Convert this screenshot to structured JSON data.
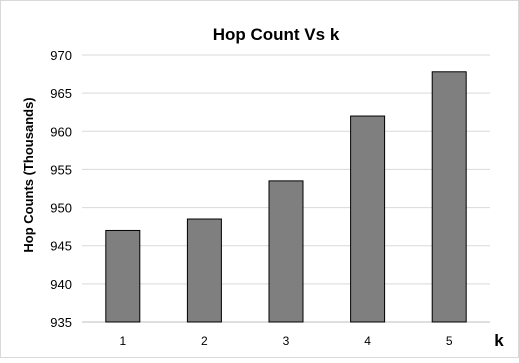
{
  "chart_data": {
    "type": "bar",
    "title": "Hop Count Vs k",
    "xlabel": "k",
    "ylabel": "Hop Counts (Thousands)",
    "categories": [
      "1",
      "2",
      "3",
      "4",
      "5"
    ],
    "values": [
      947,
      948.5,
      953.5,
      962,
      967.8
    ],
    "ylim": [
      935,
      970
    ],
    "yticks": [
      "935",
      "940",
      "945",
      "950",
      "955",
      "960",
      "965",
      "970"
    ],
    "grid": true,
    "legend": "none",
    "colors": {
      "bar_fill": "#7f7f7f",
      "bar_stroke": "#000000",
      "grid": "#d9d9d9",
      "axis": "#bfbfbf",
      "border": "#d9d9d9"
    }
  }
}
